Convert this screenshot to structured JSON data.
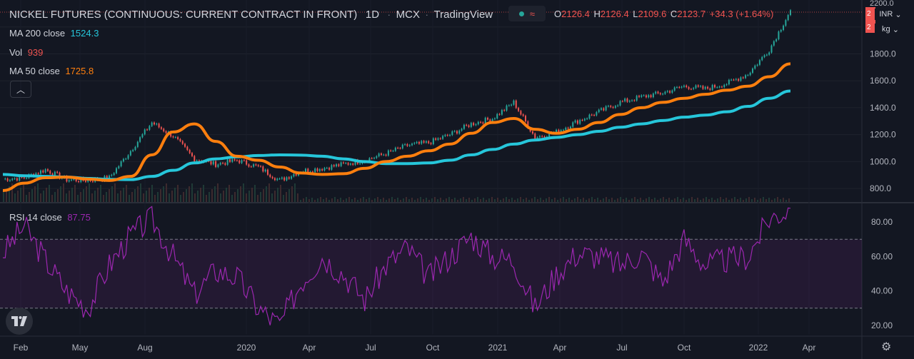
{
  "header": {
    "title": "NICKEL FUTURES (CONTINUOUS: CURRENT CONTRACT IN FRONT)",
    "interval": "1D",
    "exchange": "MCX",
    "source": "TradingView",
    "ohlc": {
      "o_label": "O",
      "o": "2126.4",
      "h_label": "H",
      "h": "2126.4",
      "l_label": "L",
      "l": "2109.6",
      "c_label": "C",
      "c": "2123.7",
      "change": "+34.3 (+1.64%)"
    }
  },
  "legend": {
    "ma200": {
      "label": "MA 200 close",
      "value": "1524.3",
      "color": "#26c6da"
    },
    "vol": {
      "label": "Vol",
      "value": "939",
      "color": "#ef5350"
    },
    "ma50": {
      "label": "MA 50 close",
      "value": "1725.8",
      "color": "#ff7f0e"
    },
    "rsi": {
      "label": "RSI 14 close",
      "value": "87.75",
      "color": "#9c27b0"
    }
  },
  "scale": {
    "currency": "INR",
    "unit": "kg",
    "partial_top": "2200.0",
    "partial_label_1": "2",
    "partial_label_2": "2"
  },
  "icons": {
    "collapse": "chevron-up-icon",
    "logo": "tradingview-logo",
    "settings": "gear-icon",
    "status": "market-status-icon"
  },
  "colors": {
    "up": "#26a69a",
    "down": "#ef5350",
    "ma50": "#ff7f0e",
    "ma200": "#26c6da",
    "rsi": "#9c27b0",
    "bg": "#131722"
  },
  "chart_data": [
    {
      "type": "line",
      "panel": "price",
      "ylim": [
        700,
        2200
      ],
      "yticks": [
        800,
        1000,
        1200,
        1400,
        1600,
        1800,
        2000,
        2200
      ],
      "ytick_labels": [
        "800.0",
        "1000.0",
        "1200.0",
        "1400.0",
        "1600.0",
        "1800.0",
        "2000.0",
        "2200.0"
      ],
      "x_labels": [
        "Feb",
        "May",
        "Aug",
        "2020",
        "Apr",
        "Jul",
        "Oct",
        "2021",
        "Apr",
        "Jul",
        "Oct",
        "2022",
        "Apr"
      ],
      "x": [
        "2019-02",
        "2019-03",
        "2019-04",
        "2019-05",
        "2019-06",
        "2019-07",
        "2019-08",
        "2019-09",
        "2019-10",
        "2019-11",
        "2019-12",
        "2020-01",
        "2020-02",
        "2020-03",
        "2020-04",
        "2020-05",
        "2020-06",
        "2020-07",
        "2020-08",
        "2020-09",
        "2020-10",
        "2020-11",
        "2020-12",
        "2021-01",
        "2021-02",
        "2021-03",
        "2021-04",
        "2021-05",
        "2021-06",
        "2021-07",
        "2021-08",
        "2021-09",
        "2021-10",
        "2021-11",
        "2021-12",
        "2022-01",
        "2022-02",
        "2022-03"
      ],
      "series": [
        {
          "name": "MA 200 close",
          "values": [
            905,
            895,
            890,
            885,
            875,
            868,
            866,
            890,
            935,
            990,
            1020,
            1035,
            1045,
            1050,
            1048,
            1040,
            1020,
            1000,
            985,
            985,
            990,
            1010,
            1050,
            1090,
            1130,
            1160,
            1180,
            1200,
            1225,
            1255,
            1280,
            1305,
            1330,
            1345,
            1370,
            1410,
            1470,
            1524
          ]
        },
        {
          "name": "MA 50 close",
          "values": [
            785,
            840,
            880,
            885,
            870,
            860,
            890,
            1050,
            1220,
            1280,
            1150,
            1040,
            1010,
            960,
            915,
            905,
            910,
            950,
            1000,
            1040,
            1080,
            1130,
            1210,
            1290,
            1320,
            1240,
            1210,
            1240,
            1290,
            1350,
            1400,
            1440,
            1470,
            1500,
            1530,
            1560,
            1630,
            1726
          ]
        },
        {
          "name": "close",
          "values": [
            870,
            880,
            940,
            865,
            860,
            880,
            1080,
            1290,
            1190,
            1020,
            980,
            1010,
            960,
            860,
            930,
            950,
            980,
            1010,
            1060,
            1120,
            1140,
            1200,
            1280,
            1320,
            1440,
            1180,
            1220,
            1300,
            1370,
            1440,
            1480,
            1510,
            1560,
            1540,
            1580,
            1650,
            1830,
            2124
          ]
        }
      ]
    },
    {
      "type": "line",
      "panel": "rsi",
      "ylim": [
        15,
        90
      ],
      "yticks": [
        20,
        40,
        60,
        80
      ],
      "ytick_labels": [
        "20.00",
        "40.00",
        "60.00",
        "80.00"
      ],
      "bands": [
        30,
        70
      ],
      "series": [
        {
          "name": "RSI 14 close",
          "values": [
            62,
            78,
            58,
            40,
            30,
            55,
            72,
            82,
            60,
            38,
            52,
            48,
            30,
            20,
            45,
            60,
            50,
            35,
            55,
            65,
            48,
            60,
            72,
            60,
            58,
            30,
            50,
            62,
            60,
            55,
            62,
            45,
            70,
            55,
            58,
            60,
            82,
            88
          ]
        }
      ]
    }
  ]
}
